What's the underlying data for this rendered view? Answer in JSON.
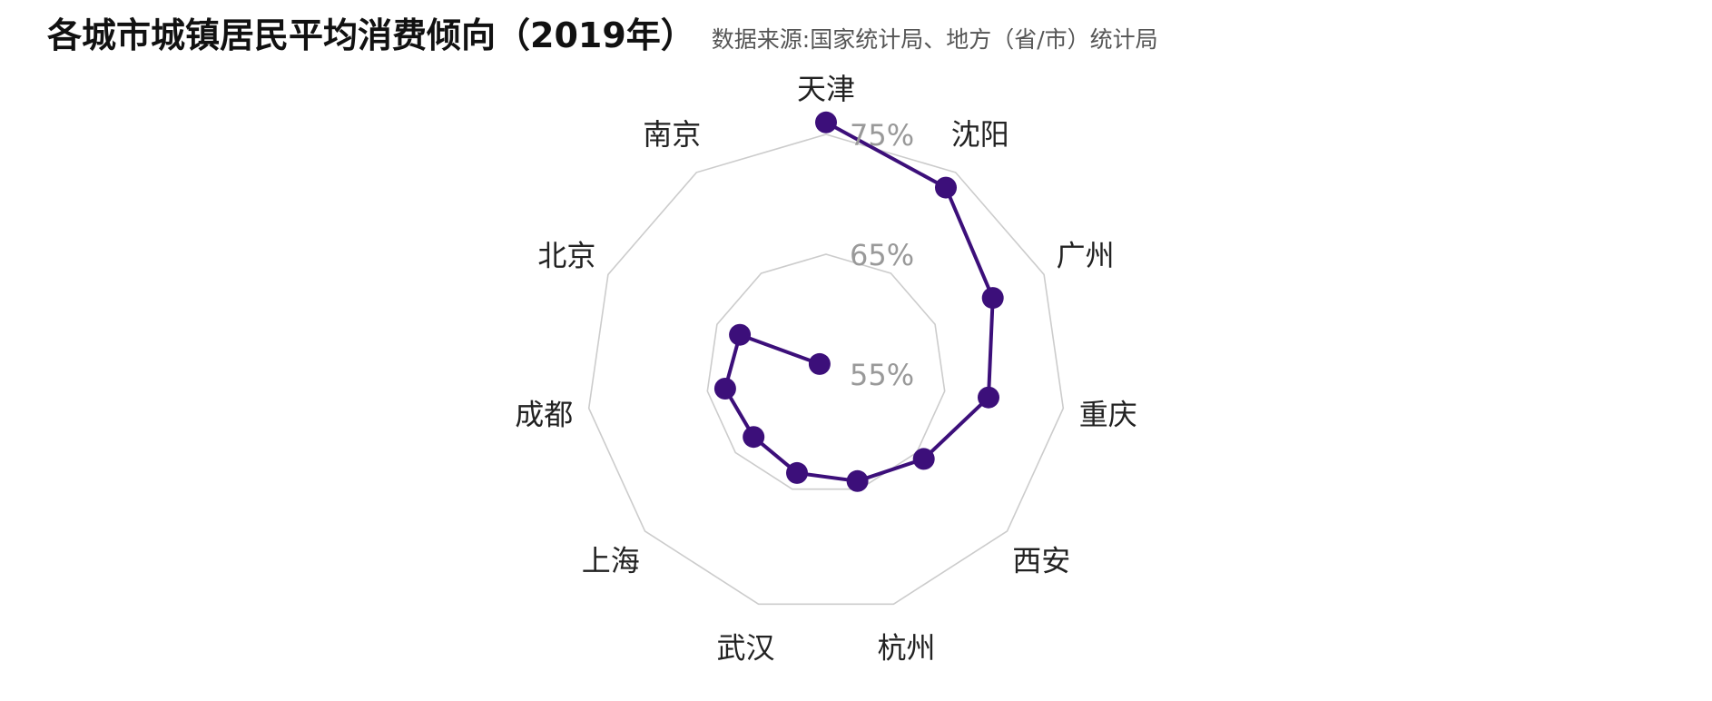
{
  "header": {
    "title": "各城市城镇居民平均消费倾向（2019年）",
    "source": "数据来源:国家统计局、地方（省/市）统计局"
  },
  "colors": {
    "series": "#3c0f7a",
    "grid": "#cccccc",
    "tick_label": "#999999",
    "category_label": "#222222"
  },
  "chart_data": {
    "type": "radar",
    "categories": [
      "天津",
      "沈阳",
      "广州",
      "重庆",
      "西安",
      "杭州",
      "武汉",
      "上海",
      "成都",
      "北京",
      "南京"
    ],
    "values": [
      76.0,
      73.5,
      70.3,
      68.7,
      65.8,
      64.3,
      63.6,
      63.0,
      63.5,
      62.9,
      56.0
    ],
    "tick_labels": [
      "55%",
      "65%",
      "75%"
    ],
    "ticks": [
      55,
      65,
      75
    ],
    "grid_rings": [
      65,
      75
    ],
    "range": [
      55,
      75
    ],
    "grid": true,
    "shape": "polygon"
  }
}
